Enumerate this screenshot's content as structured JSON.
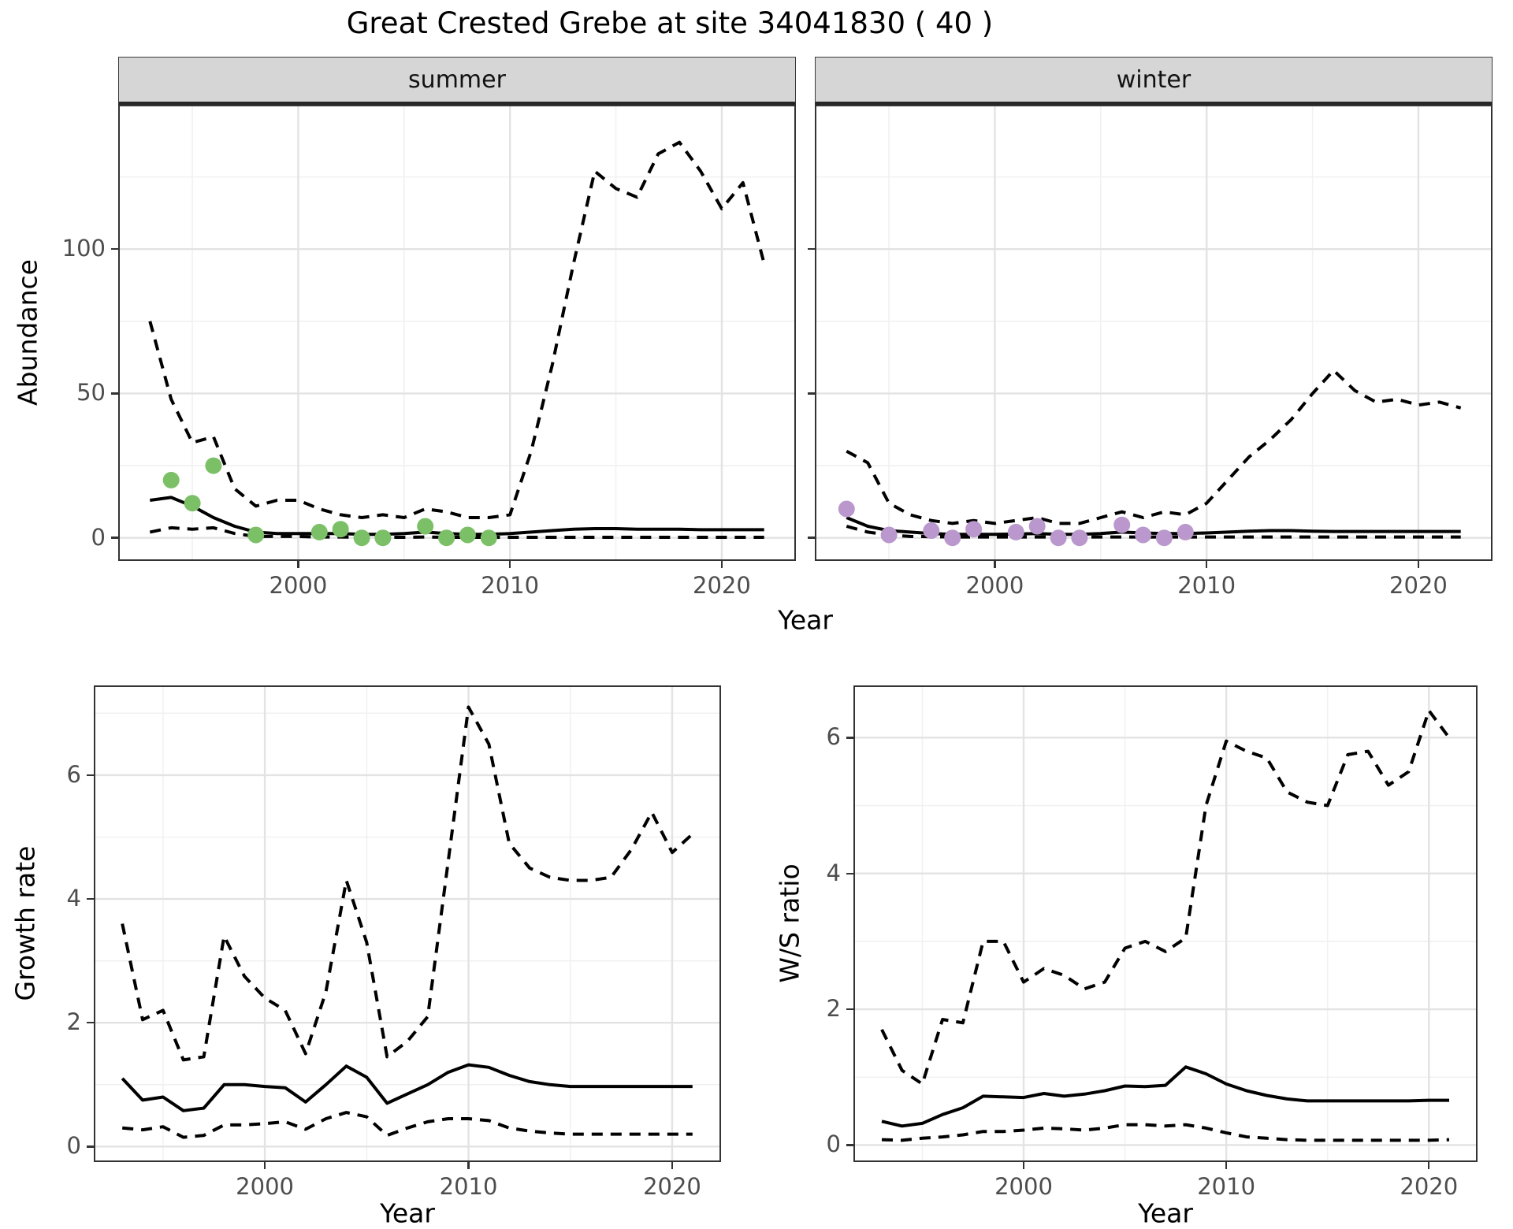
{
  "title": "Great Crested Grebe at site 34041830 ( 40 )",
  "colors": {
    "summer_points": "#7BC067",
    "winter_points": "#BA98CD",
    "line": "#000000",
    "grid_major": "#E3E3E3",
    "grid_minor": "#F1F1F1",
    "strip_bg": "#D6D6D6",
    "panel_border": "#333333",
    "tick_label": "#4D4D4D"
  },
  "abundance_figure": {
    "ylabel": "Abundance",
    "xlabel": "Year",
    "facets": [
      {
        "label": "summer"
      },
      {
        "label": "winter"
      }
    ]
  },
  "growth_figure": {
    "ylabel": "Growth rate",
    "xlabel": "Year"
  },
  "ws_figure": {
    "ylabel": "W/S ratio",
    "xlabel": "Year"
  },
  "chart_data": [
    {
      "id": "abundance-summer",
      "type": "line+scatter",
      "facet": "summer",
      "xlabel": "Year",
      "ylabel": "Abundance",
      "xlim": [
        1991.5,
        2023.5
      ],
      "ylim": [
        -8,
        150
      ],
      "xticks": [
        2000,
        2010,
        2020
      ],
      "yticks": [
        0,
        50,
        100
      ],
      "show_y_labels": true,
      "grid": true,
      "legend": "none",
      "series": [
        {
          "name": "upper_ci",
          "style": "dashed",
          "x0": 1993,
          "y": [
            75,
            48,
            33,
            35,
            17,
            11,
            13,
            13,
            10,
            8,
            7,
            8,
            7,
            10,
            9,
            7,
            7,
            8,
            30,
            60,
            95,
            127,
            121,
            118,
            133,
            137,
            127,
            114,
            123,
            95
          ]
        },
        {
          "name": "median",
          "style": "solid",
          "x0": 1993,
          "y": [
            13,
            14,
            11,
            7,
            4,
            2,
            1.5,
            1.5,
            1.5,
            1.5,
            1.2,
            1.2,
            1.5,
            2,
            1.5,
            1.2,
            1.2,
            1.5,
            2,
            2.5,
            3,
            3.2,
            3.2,
            3,
            3,
            3,
            2.8,
            2.8,
            2.8,
            2.8
          ]
        },
        {
          "name": "lower_ci",
          "style": "dashed",
          "x0": 1993,
          "y": [
            2,
            3.5,
            3,
            3.5,
            1.5,
            0.5,
            0.5,
            0.5,
            0.3,
            0.3,
            0.2,
            0.2,
            0.2,
            0.3,
            0.2,
            0.2,
            0.2,
            0.2,
            0.2,
            0.2,
            0.2,
            0.2,
            0.2,
            0.2,
            0.2,
            0.2,
            0.2,
            0.2,
            0.2,
            0.2
          ]
        }
      ],
      "points": {
        "name": "observed-summer",
        "color": "#7BC067",
        "x": [
          1994,
          1995,
          1996,
          1998,
          2001,
          2002,
          2003,
          2004,
          2006,
          2007,
          2008,
          2009
        ],
        "y": [
          20,
          12,
          25,
          1,
          2,
          3,
          0,
          0,
          4,
          0,
          1,
          0
        ]
      }
    },
    {
      "id": "abundance-winter",
      "type": "line+scatter",
      "facet": "winter",
      "xlabel": "Year",
      "ylabel": "Abundance",
      "xlim": [
        1991.5,
        2023.5
      ],
      "ylim": [
        -8,
        150
      ],
      "xticks": [
        2000,
        2010,
        2020
      ],
      "yticks": [
        0,
        50,
        100
      ],
      "show_y_labels": false,
      "grid": true,
      "legend": "none",
      "series": [
        {
          "name": "upper_ci",
          "style": "dashed",
          "x0": 1993,
          "y": [
            30,
            26,
            12,
            8,
            6,
            5,
            6,
            5,
            6,
            7,
            5,
            5,
            7,
            9,
            7,
            9,
            8,
            12,
            20,
            28,
            34,
            41,
            50,
            58,
            51,
            47,
            48,
            46,
            47,
            45
          ]
        },
        {
          "name": "median",
          "style": "solid",
          "x0": 1993,
          "y": [
            7,
            4,
            2.5,
            2,
            1.5,
            1.2,
            1.2,
            1.2,
            1.3,
            1.5,
            1.2,
            1.2,
            1.5,
            2,
            1.7,
            1.5,
            1.5,
            1.7,
            2,
            2.3,
            2.5,
            2.5,
            2.3,
            2.2,
            2.2,
            2.2,
            2.2,
            2.2,
            2.2,
            2.2
          ]
        },
        {
          "name": "lower_ci",
          "style": "dashed",
          "x0": 1993,
          "y": [
            4,
            2,
            1,
            0.5,
            0.4,
            0.3,
            0.3,
            0.3,
            0.3,
            0.3,
            0.3,
            0.3,
            0.3,
            0.3,
            0.3,
            0.3,
            0.3,
            0.3,
            0.3,
            0.3,
            0.3,
            0.3,
            0.3,
            0.3,
            0.3,
            0.3,
            0.3,
            0.3,
            0.3,
            0.3
          ]
        }
      ],
      "points": {
        "name": "observed-winter",
        "color": "#BA98CD",
        "x": [
          1993,
          1995,
          1997,
          1998,
          1999,
          2001,
          2002,
          2003,
          2004,
          2006,
          2007,
          2008,
          2009
        ],
        "y": [
          10,
          1,
          2.5,
          0,
          3,
          2,
          4,
          0,
          0,
          4.5,
          1,
          0,
          2
        ]
      }
    },
    {
      "id": "growth-rate",
      "type": "line",
      "xlabel": "Year",
      "ylabel": "Growth rate",
      "xlim": [
        1991.6,
        2022.4
      ],
      "ylim": [
        -0.25,
        7.45
      ],
      "xticks": [
        2000,
        2010,
        2020
      ],
      "yticks": [
        0,
        2,
        4,
        6
      ],
      "show_y_labels": true,
      "grid": true,
      "legend": "none",
      "series": [
        {
          "name": "upper_ci",
          "style": "dashed",
          "x0": 1993,
          "y": [
            3.6,
            2.05,
            2.2,
            1.4,
            1.45,
            3.4,
            2.75,
            2.4,
            2.2,
            1.5,
            2.5,
            4.3,
            3.3,
            1.45,
            1.7,
            2.1,
            4.6,
            7.1,
            6.5,
            4.9,
            4.5,
            4.35,
            4.3,
            4.3,
            4.35,
            4.8,
            5.4,
            4.75,
            5.05
          ]
        },
        {
          "name": "median",
          "style": "solid",
          "x0": 1993,
          "y": [
            1.1,
            0.75,
            0.8,
            0.58,
            0.62,
            1,
            1,
            0.97,
            0.95,
            0.72,
            1,
            1.3,
            1.12,
            0.7,
            0.85,
            1,
            1.2,
            1.32,
            1.28,
            1.15,
            1.05,
            1,
            0.97,
            0.97,
            0.97,
            0.97,
            0.97,
            0.97,
            0.97
          ]
        },
        {
          "name": "lower_ci",
          "style": "dashed",
          "x0": 1993,
          "y": [
            0.3,
            0.27,
            0.32,
            0.15,
            0.18,
            0.35,
            0.35,
            0.37,
            0.4,
            0.28,
            0.45,
            0.55,
            0.48,
            0.18,
            0.3,
            0.4,
            0.45,
            0.45,
            0.42,
            0.3,
            0.25,
            0.22,
            0.2,
            0.2,
            0.2,
            0.2,
            0.2,
            0.2,
            0.2
          ]
        }
      ]
    },
    {
      "id": "ws-ratio",
      "type": "line",
      "xlabel": "Year",
      "ylabel": "W/S ratio",
      "xlim": [
        1991.6,
        2022.4
      ],
      "ylim": [
        -0.25,
        6.77
      ],
      "xticks": [
        2000,
        2010,
        2020
      ],
      "yticks": [
        0,
        2,
        4,
        6
      ],
      "show_y_labels": true,
      "grid": true,
      "legend": "none",
      "series": [
        {
          "name": "upper_ci",
          "style": "dashed",
          "x0": 1993,
          "y": [
            1.7,
            1.1,
            0.9,
            1.85,
            1.8,
            3,
            3,
            2.4,
            2.6,
            2.5,
            2.3,
            2.4,
            2.9,
            3,
            2.85,
            3.05,
            5,
            5.95,
            5.8,
            5.7,
            5.2,
            5.05,
            5,
            5.75,
            5.8,
            5.3,
            5.5,
            6.4,
            6
          ]
        },
        {
          "name": "median",
          "style": "solid",
          "x0": 1993,
          "y": [
            0.35,
            0.28,
            0.32,
            0.45,
            0.55,
            0.72,
            0.71,
            0.7,
            0.76,
            0.72,
            0.75,
            0.8,
            0.87,
            0.86,
            0.88,
            1.15,
            1.05,
            0.9,
            0.8,
            0.73,
            0.68,
            0.65,
            0.65,
            0.65,
            0.65,
            0.65,
            0.65,
            0.66,
            0.66
          ]
        },
        {
          "name": "lower_ci",
          "style": "dashed",
          "x0": 1993,
          "y": [
            0.08,
            0.07,
            0.1,
            0.12,
            0.15,
            0.2,
            0.2,
            0.22,
            0.25,
            0.24,
            0.22,
            0.25,
            0.3,
            0.3,
            0.28,
            0.3,
            0.25,
            0.18,
            0.12,
            0.1,
            0.08,
            0.07,
            0.07,
            0.07,
            0.07,
            0.07,
            0.07,
            0.07,
            0.08
          ]
        }
      ]
    }
  ]
}
